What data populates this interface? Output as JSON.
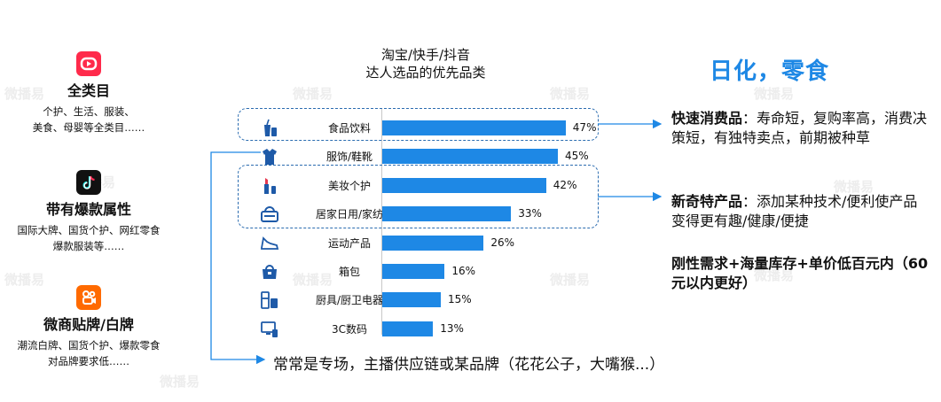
{
  "platforms": [
    {
      "name": "全类目",
      "desc_lines": [
        "个护、生活、服装、",
        "美食、母婴等全类目……"
      ],
      "icon": "taobao-icon",
      "color": "#ff2a4b"
    },
    {
      "name": "带有爆款属性",
      "desc_lines": [
        "国际大牌、国货个护、网红零食",
        "爆款服装等……"
      ],
      "icon": "douyin-icon",
      "color": "#111111"
    },
    {
      "name": "微商贴牌/白牌",
      "desc_lines": [
        "潮流白牌、国货个护、爆款零食",
        "对品牌要求低……"
      ],
      "icon": "kuaishou-icon",
      "color": "#ff6a00"
    }
  ],
  "chart_data": {
    "type": "bar",
    "orientation": "horizontal",
    "title_lines": [
      "淘宝/快手/抖音",
      "达人选品的优先品类"
    ],
    "categories": [
      "食品饮料",
      "服饰/鞋靴",
      "美妆个护",
      "居家日用/家纺",
      "运动产品",
      "箱包",
      "厨具/厨卫电器",
      "3C数码"
    ],
    "values": [
      47,
      45,
      42,
      33,
      26,
      16,
      15,
      13
    ],
    "value_labels": [
      "47%",
      "45%",
      "42%",
      "33%",
      "26%",
      "16%",
      "15%",
      "13%"
    ],
    "unit": "%",
    "bar_color": "#1e88e5",
    "category_icons": [
      "drink-icon",
      "shirt-icon",
      "lipstick-icon",
      "basket-icon",
      "sneaker-icon",
      "handbag-icon",
      "fridge-icon",
      "computer-icon"
    ]
  },
  "right": {
    "title": "日化，零食",
    "points": [
      {
        "bold": "快速消费品",
        "text": "：寿命短，复购率高，消费决策短，有独特卖点，前期被种草"
      },
      {
        "bold": "新奇特产品",
        "text": "：添加某种技术/便利使产品变得更有趣/健康/便捷"
      },
      {
        "bold": "刚性需求+海量库存+单价低百元内（60元以内更好）",
        "text": ""
      }
    ]
  },
  "bottom_note": "常常是专场，主播供应链或某品牌（花花公子，大嘴猴...）",
  "watermark": "微播易",
  "accent_color": "#1e88e5",
  "dash_color": "#2b6cb0"
}
